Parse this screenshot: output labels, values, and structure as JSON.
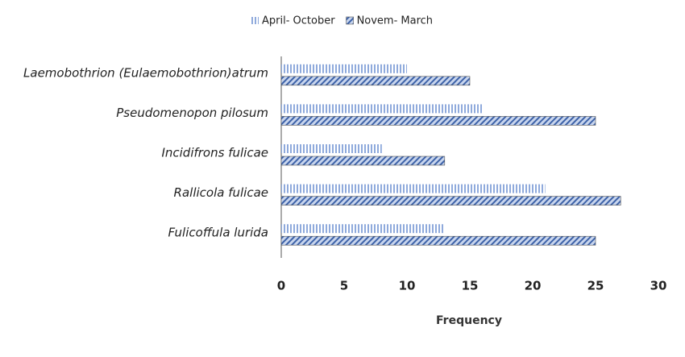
{
  "chart_data": {
    "type": "hbar",
    "categories": [
      "Laemobothrion (Eulaemobothrion)atrum",
      "Pseudomenopon pilosum",
      "Incidifrons fulicae",
      "Rallicola fulicae",
      "Fulicoffula lurida"
    ],
    "series": [
      {
        "name": "April- October",
        "color": "#8faadc",
        "values": [
          10,
          16,
          8,
          21,
          13
        ]
      },
      {
        "name": "Novem- March",
        "color": "#3d62a8",
        "values": [
          15,
          25,
          13,
          27,
          25
        ]
      }
    ],
    "xlabel": "Frequency",
    "xlim": [
      0,
      30
    ],
    "xticks": [
      0,
      5,
      10,
      15,
      20,
      25,
      30
    ],
    "legend": "top"
  }
}
